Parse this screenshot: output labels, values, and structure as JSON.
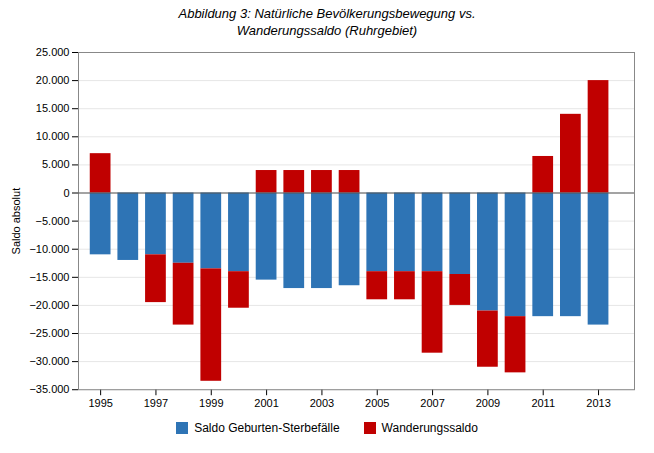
{
  "chart_data": {
    "type": "bar",
    "title": "Abbildung 3: Natürliche Bevölkerungsbewegung vs.\nWanderungssaldo (Ruhrgebiet)",
    "x": [
      1995,
      1996,
      1997,
      1998,
      1999,
      2000,
      2001,
      2002,
      2003,
      2004,
      2005,
      2006,
      2007,
      2008,
      2009,
      2010,
      2011,
      2012,
      2013
    ],
    "xlim": [
      1994.2,
      2014.3
    ],
    "xticks": [
      1995,
      1997,
      1999,
      2001,
      2003,
      2005,
      2007,
      2009,
      2011,
      2013
    ],
    "ylabel": "Saldo absolut",
    "ylim": [
      -35000,
      25000
    ],
    "yticks": [
      {
        "value": -35000,
        "label": "−35.000"
      },
      {
        "value": -30000,
        "label": "−30.000"
      },
      {
        "value": -25000,
        "label": "−25.000"
      },
      {
        "value": -20000,
        "label": "−20.000"
      },
      {
        "value": -15000,
        "label": "−15.000"
      },
      {
        "value": -10000,
        "label": "−10.000"
      },
      {
        "value": -5000,
        "label": "−5.000"
      },
      0,
      {
        "value": 5000,
        "label": "5.000"
      },
      {
        "value": 10000,
        "label": "10.000"
      },
      {
        "value": 15000,
        "label": "15.000"
      },
      {
        "value": 20000,
        "label": "20.000"
      },
      {
        "value": 25000,
        "label": "25.000"
      }
    ],
    "series": [
      {
        "name": "Saldo Geburten-Sterbefälle",
        "color": "#2E74B5",
        "values": [
          -11000,
          -12000,
          -11000,
          -12500,
          -13500,
          -14000,
          -15500,
          -17000,
          -17000,
          -16500,
          -14000,
          -14000,
          -14000,
          -14500,
          -21000,
          -22000,
          -22000,
          -22000,
          -23500
        ]
      },
      {
        "name": "Wanderungssaldo",
        "color": "#C00000",
        "values": [
          7000,
          0,
          -8500,
          -11000,
          -20000,
          -6500,
          4000,
          4000,
          4000,
          4000,
          -5000,
          -5000,
          -14500,
          -5500,
          -10000,
          -10000,
          6500,
          14000,
          20000
        ]
      }
    ],
    "stacked": true,
    "grid": true,
    "legend": "bottom"
  }
}
